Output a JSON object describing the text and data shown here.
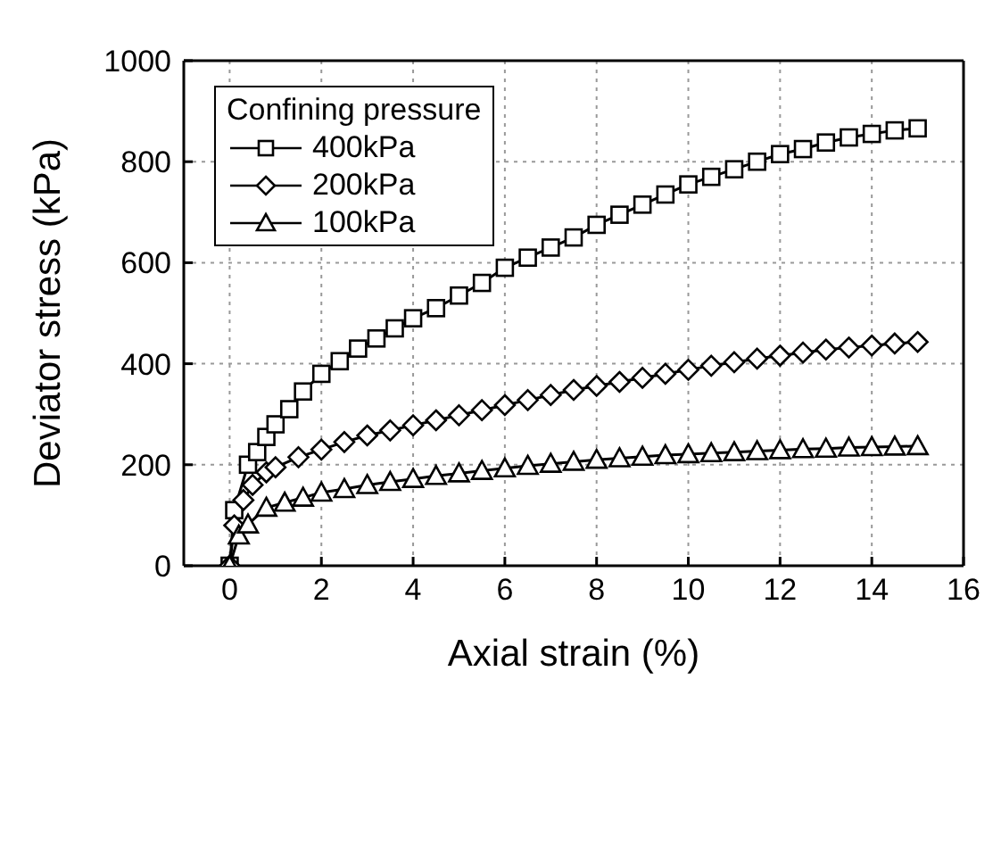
{
  "chart_data": {
    "type": "line",
    "xlabel": "Axial strain (%)",
    "ylabel": "Deviator stress (kPa)",
    "legend_title": "Confining pressure",
    "legend": "top left",
    "grid": true,
    "line_style": "solid",
    "xlim": [
      -1,
      16
    ],
    "xticks": [
      0,
      2,
      4,
      6,
      8,
      10,
      12,
      14,
      16
    ],
    "ylim": [
      0,
      1000
    ],
    "yticks": [
      0,
      200,
      400,
      600,
      800,
      1000
    ],
    "series": [
      {
        "name": "400kPa",
        "color": "#000000",
        "marker": "square",
        "x": [
          0,
          0.1,
          0.4,
          0.6,
          0.8,
          1,
          1.3,
          1.6,
          2,
          2.4,
          2.8,
          3.2,
          3.6,
          4,
          4.5,
          5,
          5.5,
          6,
          6.5,
          7,
          7.5,
          8,
          8.5,
          9,
          9.5,
          10,
          10.5,
          11,
          11.5,
          12,
          12.5,
          13,
          13.5,
          14,
          14.5,
          15
        ],
        "values": [
          0,
          110,
          200,
          225,
          255,
          280,
          310,
          345,
          380,
          405,
          430,
          450,
          470,
          490,
          510,
          535,
          560,
          590,
          610,
          630,
          650,
          675,
          695,
          715,
          735,
          755,
          770,
          785,
          800,
          815,
          825,
          838,
          848,
          855,
          862,
          866
        ]
      },
      {
        "name": "200kPa",
        "color": "#000000",
        "marker": "diamond",
        "x": [
          0,
          0.1,
          0.3,
          0.5,
          0.8,
          1,
          1.5,
          2,
          2.5,
          3,
          3.5,
          4,
          4.5,
          5,
          5.5,
          6,
          6.5,
          7,
          7.5,
          8,
          8.5,
          9,
          9.5,
          10,
          10.5,
          11,
          11.5,
          12,
          12.5,
          13,
          13.5,
          14,
          14.5,
          15
        ],
        "values": [
          0,
          80,
          130,
          160,
          185,
          195,
          215,
          230,
          245,
          258,
          268,
          278,
          288,
          298,
          308,
          318,
          328,
          338,
          348,
          356,
          364,
          372,
          380,
          388,
          396,
          403,
          410,
          416,
          422,
          428,
          432,
          436,
          440,
          443
        ]
      },
      {
        "name": "100kPa",
        "color": "#000000",
        "marker": "triangle",
        "x": [
          0,
          0.2,
          0.4,
          0.8,
          1.2,
          1.6,
          2,
          2.5,
          3,
          3.5,
          4,
          4.5,
          5,
          5.5,
          6,
          6.5,
          7,
          7.5,
          8,
          8.5,
          9,
          9.5,
          10,
          10.5,
          11,
          11.5,
          12,
          12.5,
          13,
          13.5,
          14,
          14.5,
          15
        ],
        "values": [
          0,
          60,
          82,
          115,
          125,
          135,
          145,
          152,
          160,
          166,
          172,
          178,
          183,
          188,
          193,
          198,
          202,
          206,
          210,
          213,
          216,
          219,
          221,
          223,
          225,
          227,
          229,
          231,
          232,
          234,
          235,
          236,
          237
        ]
      }
    ]
  }
}
